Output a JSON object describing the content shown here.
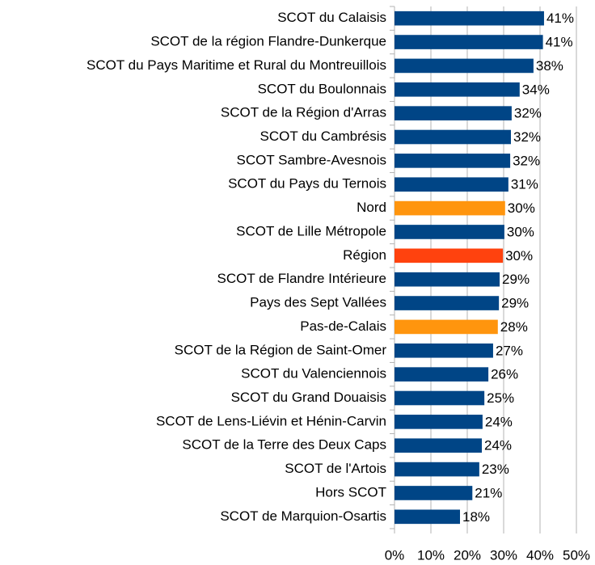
{
  "chart_data": {
    "type": "bar",
    "orientation": "horizontal",
    "categories": [
      "SCOT du Calaisis",
      "SCOT de la région Flandre-Dunkerque",
      "SCOT du Pays Maritime et Rural du Montreuillois",
      "SCOT du Boulonnais",
      "SCOT de la Région d'Arras",
      "SCOT du Cambrésis",
      "SCOT Sambre-Avesnois",
      "SCOT du Pays du Ternois",
      "Nord",
      "SCOT de Lille Métropole",
      "Région",
      "SCOT de Flandre Intérieure",
      "Pays des Sept Vallées",
      "Pas-de-Calais",
      "SCOT de la Région de Saint-Omer",
      "SCOT du Valenciennois",
      "SCOT du Grand Douaisis",
      "SCOT de Lens-Liévin et Hénin-Carvin",
      "SCOT de la Terre des Deux Caps",
      "SCOT de l'Artois",
      "Hors SCOT",
      "SCOT de Marquion-Osartis"
    ],
    "values": [
      41.1,
      40.8,
      38.2,
      34.4,
      32.2,
      32.0,
      31.8,
      31.3,
      30.4,
      30.2,
      29.8,
      28.9,
      28.7,
      28.4,
      27.1,
      25.8,
      24.7,
      24.2,
      24.0,
      23.3,
      21.4,
      18.0
    ],
    "value_labels": [
      "41%",
      "41%",
      "38%",
      "34%",
      "32%",
      "32%",
      "32%",
      "31%",
      "30%",
      "30%",
      "30%",
      "29%",
      "29%",
      "28%",
      "27%",
      "26%",
      "25%",
      "24%",
      "24%",
      "23%",
      "21%",
      "18%"
    ],
    "colors": [
      "#004586",
      "#004586",
      "#004586",
      "#004586",
      "#004586",
      "#004586",
      "#004586",
      "#004586",
      "#ff950e",
      "#004586",
      "#ff420e",
      "#004586",
      "#004586",
      "#ff950e",
      "#004586",
      "#004586",
      "#004586",
      "#004586",
      "#004586",
      "#004586",
      "#004586",
      "#004586"
    ],
    "xlim": [
      0,
      50
    ],
    "xticks": [
      {
        "value": 0,
        "label": "0%"
      },
      {
        "value": 10,
        "label": "10%"
      },
      {
        "value": 20,
        "label": "20%"
      },
      {
        "value": 30,
        "label": "30%"
      },
      {
        "value": 40,
        "label": "40%"
      },
      {
        "value": 50,
        "label": "50%"
      }
    ],
    "grid": true
  }
}
